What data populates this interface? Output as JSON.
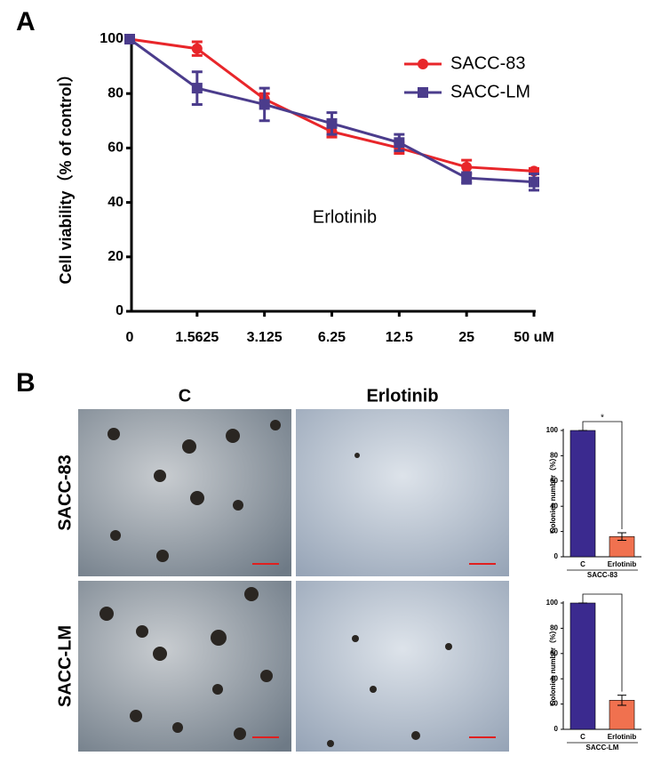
{
  "panel_labels": [
    "A",
    "B"
  ],
  "column_headers": [
    "C",
    "Erlotinib"
  ],
  "row_labels": [
    "SACC-83",
    "SACC-LM"
  ],
  "chart_data": [
    {
      "type": "line",
      "ylabel": "Cell viability（% of control）",
      "annotation": "Erlotinib",
      "categories": [
        "0",
        "1.5625",
        "3.125",
        "6.25",
        "12.5",
        "25",
        "50 uM"
      ],
      "series": [
        {
          "name": "SACC-83",
          "color": "#e8262a",
          "marker": "circle",
          "values": [
            100,
            96.5,
            78,
            66,
            60,
            53,
            51.5
          ],
          "errors": [
            0,
            2.5,
            2,
            2,
            2,
            2.5,
            1
          ]
        },
        {
          "name": "SACC-LM",
          "color": "#4b3c8c",
          "marker": "square",
          "values": [
            100,
            82,
            76,
            69,
            62,
            49,
            47.5
          ],
          "errors": [
            0,
            6,
            6,
            4,
            3,
            2,
            3
          ]
        }
      ],
      "ylim": [
        0,
        100
      ],
      "yticks": [
        0,
        20,
        40,
        60,
        80,
        100
      ],
      "legend": "upper right"
    },
    {
      "type": "bar",
      "ylabel": "Colonies number（%）",
      "xlabel": "SACC-83",
      "annotation": "*",
      "categories": [
        "C",
        "Erlotinib"
      ],
      "colors": [
        "#3b2a8f",
        "#f0714f"
      ],
      "values": [
        100,
        16
      ],
      "errors": [
        0,
        3
      ],
      "ylim": [
        0,
        100
      ],
      "yticks": [
        0,
        20,
        40,
        60,
        80,
        100
      ]
    },
    {
      "type": "bar",
      "ylabel": "Colonies number（%）",
      "xlabel": "SACC-LM",
      "categories": [
        "C",
        "Erlotinib"
      ],
      "colors": [
        "#3b2a8f",
        "#f0714f"
      ],
      "values": [
        100,
        23
      ],
      "errors": [
        0,
        4
      ],
      "ylim": [
        0,
        100
      ],
      "yticks": [
        0,
        20,
        40,
        60,
        80,
        100
      ]
    }
  ]
}
